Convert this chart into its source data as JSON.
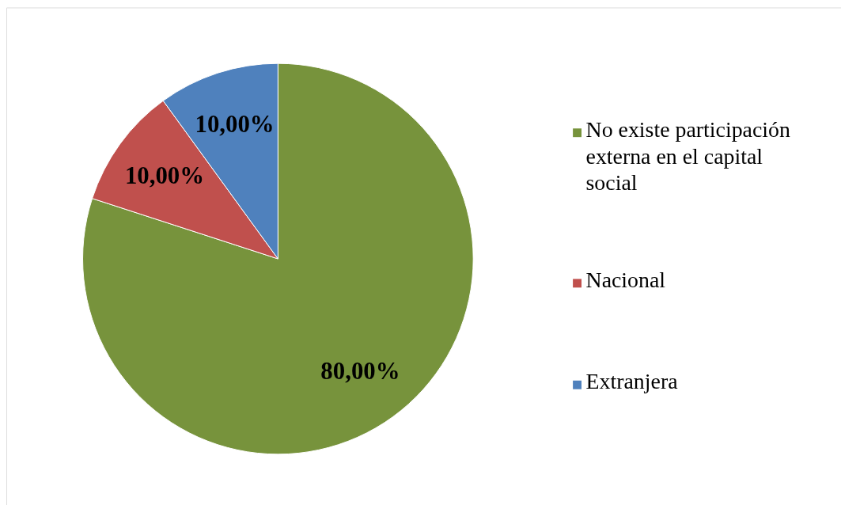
{
  "chart_data": {
    "type": "pie",
    "categories": [
      "No existe participación externa en el capital social",
      "Nacional",
      "Extranjera"
    ],
    "values": [
      80,
      10,
      10
    ],
    "colors": [
      "#77933c",
      "#c0504d",
      "#4f81bd"
    ],
    "value_labels": [
      "80,00%",
      "10,00%",
      "10,00%"
    ],
    "legend": "right"
  }
}
